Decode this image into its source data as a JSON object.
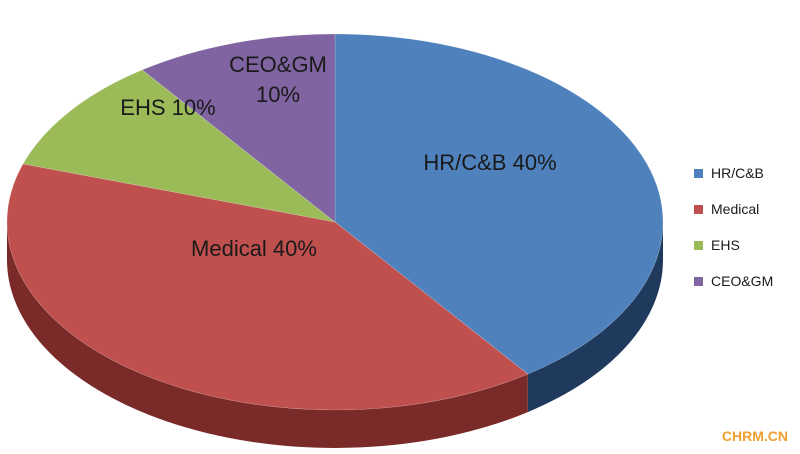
{
  "chart_data": {
    "type": "pie",
    "title": "",
    "slices": [
      {
        "label": "HR/C&B",
        "value": 40,
        "display": "HR/C&B 40%",
        "color": "#4f81bd",
        "side_color": "#1f3a5c"
      },
      {
        "label": "Medical",
        "value": 40,
        "display": "Medical 40%",
        "color": "#c0504d",
        "side_color": "#7a2a28"
      },
      {
        "label": "EHS",
        "value": 10,
        "display": "EHS 10%",
        "color": "#9bbb59",
        "side_color": "#5f7a2e"
      },
      {
        "label": "CEO&GM",
        "value": 10,
        "display_lines": [
          "CEO&GM",
          "10%"
        ],
        "color": "#8064a2",
        "side_color": "#4b3566"
      }
    ],
    "legend": {
      "position": "right",
      "items": [
        {
          "label": "HR/C&B",
          "color": "#4f81bd"
        },
        {
          "label": "Medical",
          "color": "#c0504d"
        },
        {
          "label": "EHS",
          "color": "#9bbb59"
        },
        {
          "label": "CEO&GM",
          "color": "#8064a2"
        }
      ]
    }
  },
  "watermark": "CHRM.CN"
}
